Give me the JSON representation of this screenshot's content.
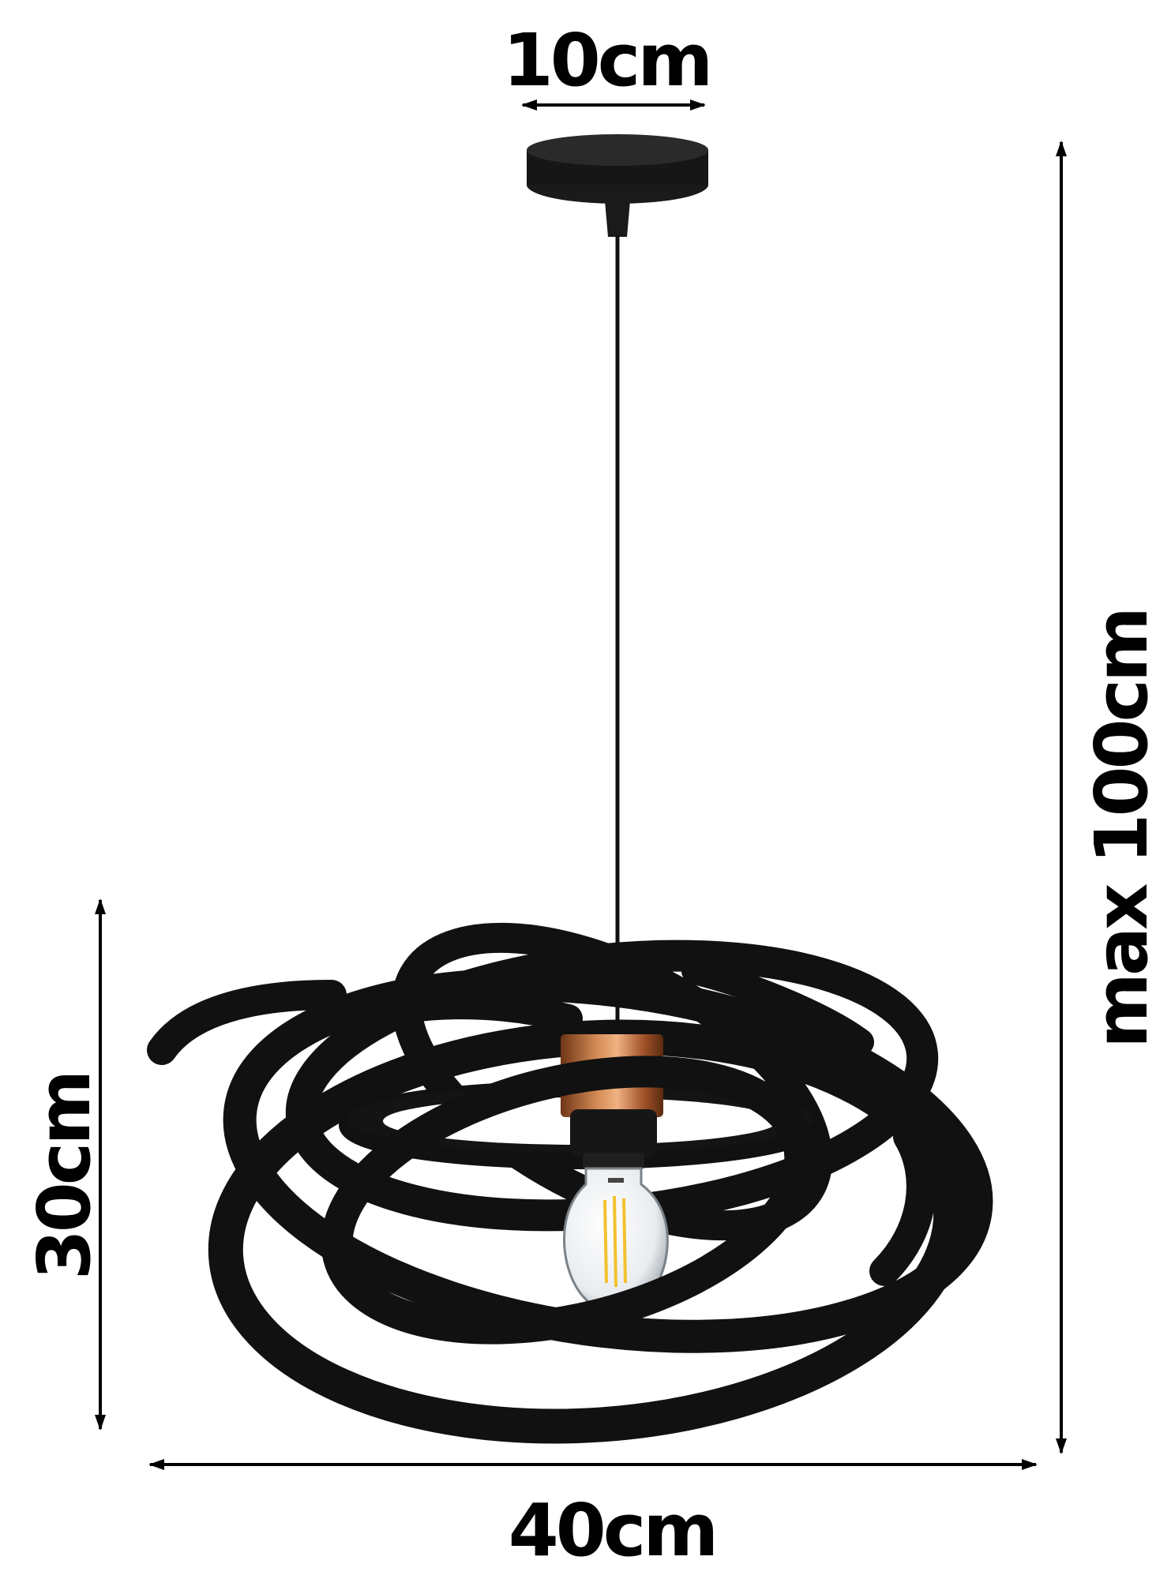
{
  "dimensions": {
    "canopy_width": "10cm",
    "total_height": "max 100cm",
    "shade_height": "30cm",
    "shade_width": "40cm"
  },
  "colors": {
    "metal": "#111111",
    "socket_copper": "#b4663a",
    "filament": "#f2c12e",
    "background": "#ffffff"
  }
}
